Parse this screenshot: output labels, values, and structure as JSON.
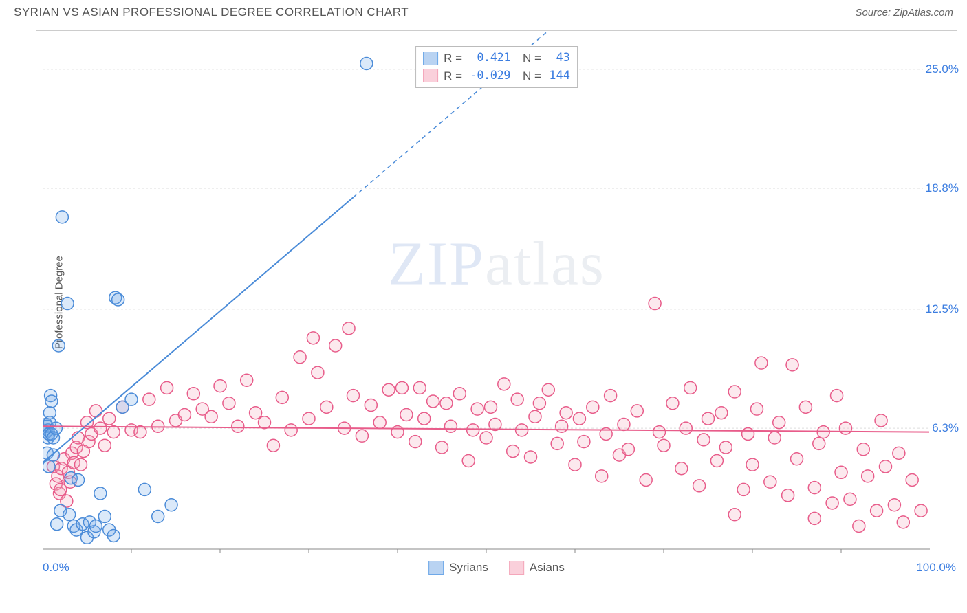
{
  "title": "SYRIAN VS ASIAN PROFESSIONAL DEGREE CORRELATION CHART",
  "source": "Source: ZipAtlas.com",
  "y_axis_label": "Professional Degree",
  "watermark": {
    "part1": "ZIP",
    "part2": "atlas"
  },
  "chart": {
    "type": "scatter",
    "xlim": [
      0,
      100
    ],
    "ylim": [
      0,
      27
    ],
    "x_min_label": "0.0%",
    "x_max_label": "100.0%",
    "y_ticks": [
      {
        "value": 6.3,
        "label": "6.3%"
      },
      {
        "value": 12.5,
        "label": "12.5%"
      },
      {
        "value": 18.8,
        "label": "18.8%"
      },
      {
        "value": 25.0,
        "label": "25.0%"
      }
    ],
    "x_ticks_minor": [
      10,
      20,
      30,
      40,
      50,
      60,
      70,
      80,
      90
    ],
    "grid_color": "#dddddd",
    "grid_dash": "3,3",
    "axis_color": "#888888",
    "background_color": "#ffffff",
    "marker_radius": 9,
    "marker_stroke_width": 1.5,
    "marker_fill_opacity": 0.25,
    "series": [
      {
        "name": "Syrians",
        "color": "#6ea8e8",
        "stroke": "#4a8bd8",
        "R": "0.421",
        "N": "43",
        "trend": {
          "y_at_x0": 4.5,
          "y_at_x100": 44.0,
          "solid_until_x": 35
        },
        "points": [
          [
            0.4,
            6.1
          ],
          [
            0.4,
            6.5
          ],
          [
            0.5,
            6.4
          ],
          [
            0.5,
            5.0
          ],
          [
            0.6,
            5.8
          ],
          [
            0.6,
            6.2
          ],
          [
            0.7,
            4.3
          ],
          [
            0.7,
            6.0
          ],
          [
            0.8,
            7.1
          ],
          [
            0.8,
            6.6
          ],
          [
            0.9,
            8.0
          ],
          [
            1.0,
            7.7
          ],
          [
            1.0,
            6.0
          ],
          [
            1.2,
            4.9
          ],
          [
            1.2,
            5.8
          ],
          [
            1.5,
            6.3
          ],
          [
            1.6,
            1.3
          ],
          [
            1.8,
            10.6
          ],
          [
            2.0,
            2.0
          ],
          [
            2.2,
            17.3
          ],
          [
            2.8,
            12.8
          ],
          [
            3.0,
            1.8
          ],
          [
            3.2,
            3.7
          ],
          [
            3.5,
            1.2
          ],
          [
            3.8,
            1.0
          ],
          [
            4.0,
            3.6
          ],
          [
            4.5,
            1.3
          ],
          [
            5.0,
            0.6
          ],
          [
            5.3,
            1.4
          ],
          [
            5.8,
            0.9
          ],
          [
            6.0,
            1.2
          ],
          [
            6.5,
            2.9
          ],
          [
            7.0,
            1.7
          ],
          [
            7.5,
            1.0
          ],
          [
            8.0,
            0.7
          ],
          [
            8.2,
            13.1
          ],
          [
            8.5,
            13.0
          ],
          [
            9.0,
            7.4
          ],
          [
            10.0,
            7.8
          ],
          [
            11.5,
            3.1
          ],
          [
            13.0,
            1.7
          ],
          [
            14.5,
            2.3
          ],
          [
            36.5,
            25.3
          ]
        ]
      },
      {
        "name": "Asians",
        "color": "#f4a6ba",
        "stroke": "#e85c8a",
        "R": "-0.029",
        "N": "144",
        "trend": {
          "y_at_x0": 6.4,
          "y_at_x100": 6.1,
          "solid_until_x": 100
        },
        "points": [
          [
            1.2,
            4.3
          ],
          [
            1.5,
            3.4
          ],
          [
            1.7,
            3.8
          ],
          [
            1.9,
            2.9
          ],
          [
            2.0,
            3.1
          ],
          [
            2.1,
            4.2
          ],
          [
            2.4,
            4.7
          ],
          [
            2.7,
            2.5
          ],
          [
            2.9,
            4.0
          ],
          [
            3.1,
            3.5
          ],
          [
            3.3,
            5.0
          ],
          [
            3.5,
            4.5
          ],
          [
            3.8,
            5.3
          ],
          [
            4.0,
            5.8
          ],
          [
            4.3,
            4.4
          ],
          [
            4.6,
            5.1
          ],
          [
            5.0,
            6.6
          ],
          [
            5.2,
            5.6
          ],
          [
            5.5,
            6.0
          ],
          [
            6.0,
            7.2
          ],
          [
            6.5,
            6.3
          ],
          [
            7.0,
            5.4
          ],
          [
            7.5,
            6.8
          ],
          [
            8.0,
            6.1
          ],
          [
            9.0,
            7.4
          ],
          [
            10.0,
            6.2
          ],
          [
            11.0,
            6.1
          ],
          [
            12.0,
            7.8
          ],
          [
            13.0,
            6.4
          ],
          [
            14.0,
            8.4
          ],
          [
            15.0,
            6.7
          ],
          [
            16.0,
            7.0
          ],
          [
            17.0,
            8.1
          ],
          [
            18.0,
            7.3
          ],
          [
            19.0,
            6.9
          ],
          [
            20.0,
            8.5
          ],
          [
            21.0,
            7.6
          ],
          [
            22.0,
            6.4
          ],
          [
            23.0,
            8.8
          ],
          [
            24.0,
            7.1
          ],
          [
            25.0,
            6.6
          ],
          [
            26.0,
            5.4
          ],
          [
            27.0,
            7.9
          ],
          [
            28.0,
            6.2
          ],
          [
            29.0,
            10.0
          ],
          [
            30.0,
            6.8
          ],
          [
            30.5,
            11.0
          ],
          [
            31.0,
            9.2
          ],
          [
            32.0,
            7.4
          ],
          [
            33.0,
            10.6
          ],
          [
            34.0,
            6.3
          ],
          [
            34.5,
            11.5
          ],
          [
            35.0,
            8.0
          ],
          [
            36.0,
            5.9
          ],
          [
            37.0,
            7.5
          ],
          [
            38.0,
            6.6
          ],
          [
            39.0,
            8.3
          ],
          [
            40.0,
            6.1
          ],
          [
            40.5,
            8.4
          ],
          [
            41.0,
            7.0
          ],
          [
            42.0,
            5.6
          ],
          [
            42.5,
            8.4
          ],
          [
            43.0,
            6.8
          ],
          [
            44.0,
            7.7
          ],
          [
            45.0,
            5.3
          ],
          [
            45.5,
            7.6
          ],
          [
            46.0,
            6.4
          ],
          [
            47.0,
            8.1
          ],
          [
            48.0,
            4.6
          ],
          [
            48.5,
            6.2
          ],
          [
            49.0,
            7.3
          ],
          [
            50.0,
            5.8
          ],
          [
            50.5,
            7.4
          ],
          [
            51.0,
            6.5
          ],
          [
            52.0,
            8.6
          ],
          [
            53.0,
            5.1
          ],
          [
            53.5,
            7.8
          ],
          [
            54.0,
            6.2
          ],
          [
            55.0,
            4.8
          ],
          [
            55.5,
            6.9
          ],
          [
            56.0,
            7.6
          ],
          [
            57.0,
            8.3
          ],
          [
            58.0,
            5.5
          ],
          [
            58.5,
            6.4
          ],
          [
            59.0,
            7.1
          ],
          [
            60.0,
            4.4
          ],
          [
            60.5,
            6.8
          ],
          [
            61.0,
            5.6
          ],
          [
            62.0,
            7.4
          ],
          [
            63.0,
            3.8
          ],
          [
            63.5,
            6.0
          ],
          [
            64.0,
            8.0
          ],
          [
            65.0,
            4.9
          ],
          [
            65.5,
            6.5
          ],
          [
            66.0,
            5.2
          ],
          [
            67.0,
            7.2
          ],
          [
            68.0,
            3.6
          ],
          [
            69.0,
            12.8
          ],
          [
            69.5,
            6.1
          ],
          [
            70.0,
            5.4
          ],
          [
            71.0,
            7.6
          ],
          [
            72.0,
            4.2
          ],
          [
            72.5,
            6.3
          ],
          [
            73.0,
            8.4
          ],
          [
            74.0,
            3.3
          ],
          [
            74.5,
            5.7
          ],
          [
            75.0,
            6.8
          ],
          [
            76.0,
            4.6
          ],
          [
            76.5,
            7.1
          ],
          [
            77.0,
            5.3
          ],
          [
            78.0,
            8.2
          ],
          [
            79.0,
            3.1
          ],
          [
            79.5,
            6.0
          ],
          [
            80.0,
            4.4
          ],
          [
            80.5,
            7.3
          ],
          [
            81.0,
            9.7
          ],
          [
            82.0,
            3.5
          ],
          [
            82.5,
            5.8
          ],
          [
            83.0,
            6.6
          ],
          [
            84.0,
            2.8
          ],
          [
            84.5,
            9.6
          ],
          [
            85.0,
            4.7
          ],
          [
            86.0,
            7.4
          ],
          [
            87.0,
            3.2
          ],
          [
            87.5,
            5.5
          ],
          [
            88.0,
            6.1
          ],
          [
            89.0,
            2.4
          ],
          [
            89.5,
            8.0
          ],
          [
            90.0,
            4.0
          ],
          [
            90.5,
            6.3
          ],
          [
            91.0,
            2.6
          ],
          [
            92.0,
            1.2
          ],
          [
            92.5,
            5.2
          ],
          [
            93.0,
            3.8
          ],
          [
            94.0,
            2.0
          ],
          [
            94.5,
            6.7
          ],
          [
            95.0,
            4.3
          ],
          [
            96.0,
            2.3
          ],
          [
            96.5,
            5.0
          ],
          [
            97.0,
            1.4
          ],
          [
            98.0,
            3.6
          ],
          [
            99.0,
            2.0
          ],
          [
            87.0,
            1.6
          ],
          [
            78.0,
            1.8
          ]
        ]
      }
    ],
    "legend_bottom": [
      {
        "label": "Syrians",
        "fill": "#b9d3f2",
        "stroke": "#6ea8e8"
      },
      {
        "label": "Asians",
        "fill": "#fad0db",
        "stroke": "#f4a6ba"
      }
    ]
  }
}
